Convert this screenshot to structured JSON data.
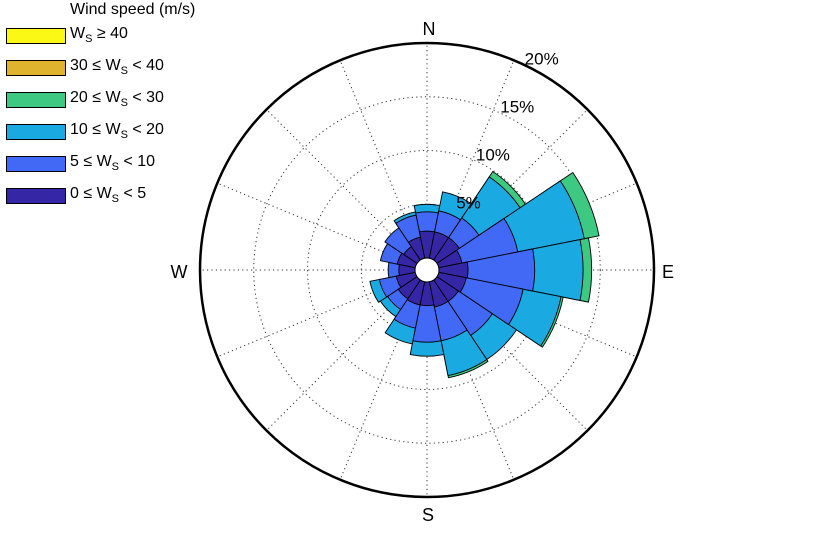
{
  "chart_data": {
    "type": "windrose",
    "legend_title": "Wind speed (m/s)",
    "compass": {
      "n": "N",
      "e": "E",
      "s": "S",
      "w": "W"
    },
    "radial_max": 20,
    "radial_ticks": [
      5,
      10,
      15,
      20
    ],
    "radial_tick_labels": [
      "5%",
      "10%",
      "15%",
      "20%"
    ],
    "grid": true,
    "legend_placement": "top-left",
    "sector_count": 16,
    "directions": [
      "N",
      "NNE",
      "NE",
      "ENE",
      "E",
      "ESE",
      "SE",
      "SSE",
      "S",
      "SSW",
      "SW",
      "WSW",
      "W",
      "WNW",
      "NW",
      "NNW"
    ],
    "bins": [
      {
        "label": [
          "",
          "0 ≤ W",
          "S",
          " < 5"
        ],
        "color": "#3526a6"
      },
      {
        "label": [
          "",
          "5 ≤ W",
          "S",
          " < 10"
        ],
        "color": "#4169f6"
      },
      {
        "label": [
          "",
          "10 ≤ W",
          "S",
          " < 20"
        ],
        "color": "#1aa9e0"
      },
      {
        "label": [
          "",
          "20 ≤ W",
          "S",
          " < 30"
        ],
        "color": "#3dc982"
      },
      {
        "label": [
          "",
          "30 ≤ W",
          "S",
          " < 40"
        ],
        "color": "#e0b32e"
      },
      {
        "label": [
          "",
          "W",
          "S",
          " ≥ 40"
        ],
        "color": "#fbf815"
      }
    ],
    "cumulative": [
      [
        2.5,
        4.3,
        5.0,
        5.0,
        5.0,
        5.0
      ],
      [
        2.5,
        4.5,
        6.3,
        6.3,
        6.3,
        6.3
      ],
      [
        2.5,
        4.7,
        9.3,
        9.9,
        9.9,
        9.9
      ],
      [
        2.2,
        7.5,
        13.8,
        15.2,
        15.2,
        15.2
      ],
      [
        2.7,
        8.9,
        13.4,
        14.2,
        14.2,
        14.2
      ],
      [
        2.6,
        8.0,
        11.6,
        11.8,
        11.8,
        11.8
      ],
      [
        2.4,
        6.2,
        8.9,
        8.9,
        8.9,
        8.9
      ],
      [
        2.4,
        5.6,
        8.9,
        9.1,
        9.1,
        9.1
      ],
      [
        2.2,
        5.6,
        6.9,
        6.9,
        6.9,
        6.9
      ],
      [
        2.2,
        4.4,
        5.9,
        5.9,
        5.9,
        5.9
      ],
      [
        2.1,
        3.3,
        4.1,
        4.1,
        4.1,
        4.1
      ],
      [
        1.8,
        3.4,
        4.3,
        4.3,
        4.3,
        4.3
      ],
      [
        1.5,
        2.5,
        2.5,
        2.5,
        2.5,
        2.5
      ],
      [
        1.7,
        3.3,
        3.3,
        3.3,
        3.3,
        3.3
      ],
      [
        1.5,
        3.6,
        3.6,
        3.6,
        3.6,
        3.6
      ],
      [
        2.0,
        4.1,
        4.4,
        4.4,
        4.4,
        4.4
      ]
    ]
  }
}
